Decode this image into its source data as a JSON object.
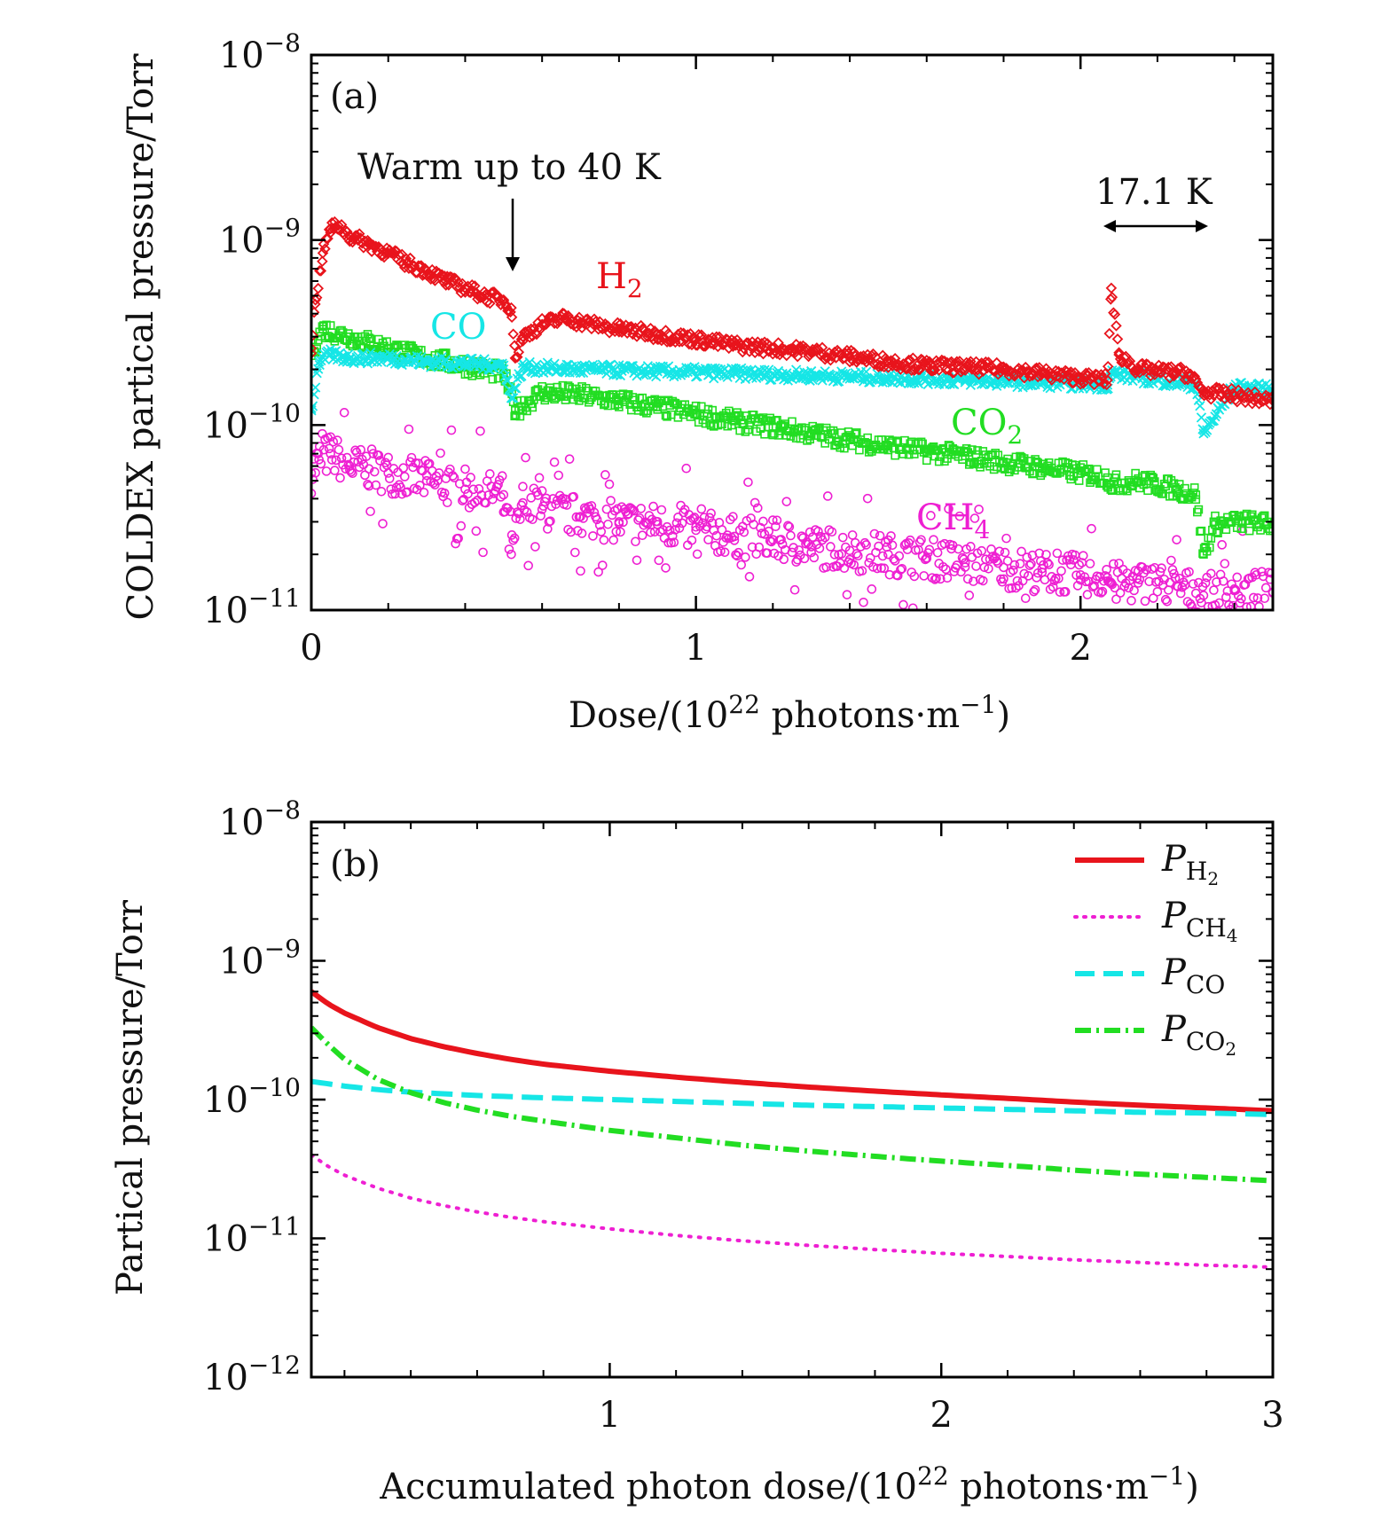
{
  "chart_data": [
    {
      "id": "a",
      "type": "scatter",
      "panel_label": "(a)",
      "xlabel": "Dose/(10²² photons·m⁻¹)",
      "xlabel_parts": {
        "pre": "Dose/(10",
        "sup1": "22",
        "mid": " photons·m",
        "sup2": "−1",
        "post": ")"
      },
      "ylabel": "COLDEX partical pressure/Torr",
      "xlim": [
        0,
        2.5
      ],
      "ylim": [
        1e-11,
        1e-08
      ],
      "yscale": "log",
      "x_ticks": [
        "0",
        "1",
        "2"
      ],
      "y_ticks": [
        {
          "base": "10",
          "exp": "−8"
        },
        {
          "base": "10",
          "exp": "−9"
        },
        {
          "base": "10",
          "exp": "−10"
        },
        {
          "base": "10",
          "exp": "−11"
        }
      ],
      "annotations": {
        "warm": "Warm up to 40 K",
        "temp": "17.1 K"
      },
      "series": [
        {
          "name": "H",
          "sub": "2",
          "color": "#e8141c",
          "marker": "diamond",
          "points": [
            [
              0.0,
              2.6e-10
            ],
            [
              0.01,
              4.5e-10
            ],
            [
              0.03,
              8.5e-10
            ],
            [
              0.05,
              1.15e-09
            ],
            [
              0.07,
              1.2e-09
            ],
            [
              0.1,
              1.05e-09
            ],
            [
              0.15,
              9.5e-10
            ],
            [
              0.2,
              8.5e-10
            ],
            [
              0.25,
              7.5e-10
            ],
            [
              0.3,
              6.8e-10
            ],
            [
              0.35,
              6e-10
            ],
            [
              0.4,
              5.5e-10
            ],
            [
              0.45,
              5e-10
            ],
            [
              0.5,
              4.7e-10
            ],
            [
              0.52,
              4.3e-10
            ],
            [
              0.53,
              2.3e-10
            ],
            [
              0.55,
              3e-10
            ],
            [
              0.6,
              3.5e-10
            ],
            [
              0.66,
              3.8e-10
            ],
            [
              0.7,
              3.6e-10
            ],
            [
              0.8,
              3.3e-10
            ],
            [
              0.9,
              3.1e-10
            ],
            [
              1.0,
              2.9e-10
            ],
            [
              1.1,
              2.7e-10
            ],
            [
              1.2,
              2.6e-10
            ],
            [
              1.3,
              2.5e-10
            ],
            [
              1.4,
              2.35e-10
            ],
            [
              1.5,
              2.2e-10
            ],
            [
              1.6,
              2.1e-10
            ],
            [
              1.7,
              2.05e-10
            ],
            [
              1.8,
              2e-10
            ],
            [
              1.9,
              1.9e-10
            ],
            [
              2.0,
              1.8e-10
            ],
            [
              2.07,
              1.75e-10
            ],
            [
              2.08,
              5.5e-10
            ],
            [
              2.1,
              2.4e-10
            ],
            [
              2.15,
              2e-10
            ],
            [
              2.2,
              1.95e-10
            ],
            [
              2.28,
              1.9e-10
            ],
            [
              2.32,
              1.5e-10
            ],
            [
              2.4,
              1.45e-10
            ],
            [
              2.5,
              1.35e-10
            ]
          ]
        },
        {
          "name": "CO",
          "sub": "",
          "color": "#16e6e6",
          "marker": "x",
          "points": [
            [
              0.0,
              1.2e-10
            ],
            [
              0.02,
              2.2e-10
            ],
            [
              0.05,
              2.4e-10
            ],
            [
              0.1,
              2.3e-10
            ],
            [
              0.2,
              2.3e-10
            ],
            [
              0.3,
              2.2e-10
            ],
            [
              0.4,
              2.15e-10
            ],
            [
              0.5,
              2.1e-10
            ],
            [
              0.52,
              1.4e-10
            ],
            [
              0.55,
              2.05e-10
            ],
            [
              0.7,
              2e-10
            ],
            [
              0.9,
              1.95e-10
            ],
            [
              1.1,
              1.9e-10
            ],
            [
              1.3,
              1.85e-10
            ],
            [
              1.5,
              1.8e-10
            ],
            [
              1.7,
              1.75e-10
            ],
            [
              1.9,
              1.7e-10
            ],
            [
              2.07,
              1.65e-10
            ],
            [
              2.08,
              1.9e-10
            ],
            [
              2.2,
              1.75e-10
            ],
            [
              2.3,
              1.65e-10
            ],
            [
              2.32,
              9e-11
            ],
            [
              2.4,
              1.6e-10
            ],
            [
              2.5,
              1.55e-10
            ]
          ]
        },
        {
          "name": "CO",
          "sub": "2",
          "color": "#22dd22",
          "marker": "square",
          "points": [
            [
              0.0,
              2.5e-10
            ],
            [
              0.03,
              3.3e-10
            ],
            [
              0.1,
              3e-10
            ],
            [
              0.2,
              2.6e-10
            ],
            [
              0.3,
              2.3e-10
            ],
            [
              0.4,
              2.1e-10
            ],
            [
              0.5,
              1.9e-10
            ],
            [
              0.53,
              1.2e-10
            ],
            [
              0.6,
              1.5e-10
            ],
            [
              0.7,
              1.45e-10
            ],
            [
              0.8,
              1.35e-10
            ],
            [
              0.9,
              1.25e-10
            ],
            [
              1.0,
              1.15e-10
            ],
            [
              1.1,
              1.05e-10
            ],
            [
              1.2,
              9.8e-11
            ],
            [
              1.3,
              9e-11
            ],
            [
              1.4,
              8.3e-11
            ],
            [
              1.5,
              7.7e-11
            ],
            [
              1.6,
              7.2e-11
            ],
            [
              1.7,
              6.8e-11
            ],
            [
              1.8,
              6.3e-11
            ],
            [
              1.9,
              5.9e-11
            ],
            [
              2.0,
              5.5e-11
            ],
            [
              2.07,
              5.2e-11
            ],
            [
              2.08,
              4.8e-11
            ],
            [
              2.15,
              5e-11
            ],
            [
              2.25,
              4.5e-11
            ],
            [
              2.3,
              4.2e-11
            ],
            [
              2.32,
              2e-11
            ],
            [
              2.35,
              2.9e-11
            ],
            [
              2.42,
              3e-11
            ],
            [
              2.5,
              2.9e-11
            ]
          ]
        },
        {
          "name": "CH",
          "sub": "4",
          "color": "#ee1fd2",
          "marker": "circle",
          "points": [
            [
              0.0,
              5.5e-11
            ],
            [
              0.02,
              6.5e-11
            ],
            [
              0.05,
              7e-11
            ],
            [
              0.1,
              6e-11
            ],
            [
              0.15,
              5.8e-11
            ],
            [
              0.2,
              5.5e-11
            ],
            [
              0.3,
              5e-11
            ],
            [
              0.4,
              4.5e-11
            ],
            [
              0.5,
              4.2e-11
            ],
            [
              0.52,
              2e-11
            ],
            [
              0.55,
              3.8e-11
            ],
            [
              0.6,
              3.5e-11
            ],
            [
              0.7,
              3.2e-11
            ],
            [
              0.8,
              3e-11
            ],
            [
              0.9,
              2.9e-11
            ],
            [
              1.0,
              2.7e-11
            ],
            [
              1.1,
              2.5e-11
            ],
            [
              1.2,
              2.4e-11
            ],
            [
              1.3,
              2.2e-11
            ],
            [
              1.4,
              2.1e-11
            ],
            [
              1.5,
              2e-11
            ],
            [
              1.6,
              1.9e-11
            ],
            [
              1.7,
              1.8e-11
            ],
            [
              1.8,
              1.7e-11
            ],
            [
              1.9,
              1.6e-11
            ],
            [
              2.0,
              1.55e-11
            ],
            [
              2.07,
              1.5e-11
            ],
            [
              2.08,
              1.4e-11
            ],
            [
              2.15,
              1.4e-11
            ],
            [
              2.25,
              1.35e-11
            ],
            [
              2.32,
              1.2e-11
            ],
            [
              2.4,
              1.3e-11
            ],
            [
              2.5,
              1.25e-11
            ]
          ]
        }
      ]
    },
    {
      "id": "b",
      "type": "line",
      "panel_label": "(b)",
      "xlabel": "Accumulated photon dose/(10²² photons·m⁻¹)",
      "xlabel_parts": {
        "pre": "Accumulated photon dose/(10",
        "sup1": "22",
        "mid": " photons·m",
        "sup2": "−1",
        "post": ")"
      },
      "ylabel": "Partical pressure/Torr",
      "xlim": [
        0.1,
        3
      ],
      "ylim": [
        1e-12,
        1e-08
      ],
      "yscale": "log",
      "x_ticks": [
        "1",
        "2",
        "3"
      ],
      "y_ticks": [
        {
          "base": "10",
          "exp": "−8"
        },
        {
          "base": "10",
          "exp": "−9"
        },
        {
          "base": "10",
          "exp": "−10"
        },
        {
          "base": "10",
          "exp": "−11"
        },
        {
          "base": "10",
          "exp": "−12"
        }
      ],
      "legend_position": "top-right",
      "x": [
        0.1,
        0.15,
        0.2,
        0.3,
        0.4,
        0.5,
        0.6,
        0.7,
        0.8,
        1.0,
        1.2,
        1.4,
        1.6,
        1.8,
        2.0,
        2.2,
        2.4,
        2.6,
        2.8,
        3.0
      ],
      "series": [
        {
          "name": "P",
          "sub": "H₂",
          "sub_base": "H",
          "sub_num": "2",
          "color": "#e8141c",
          "style": "solid",
          "values": [
            6e-10,
            4.9e-10,
            4.2e-10,
            3.3e-10,
            2.75e-10,
            2.4e-10,
            2.15e-10,
            1.95e-10,
            1.8e-10,
            1.6e-10,
            1.45e-10,
            1.33e-10,
            1.23e-10,
            1.15e-10,
            1.08e-10,
            1.02e-10,
            9.6e-11,
            9.1e-11,
            8.7e-11,
            8.3e-11
          ]
        },
        {
          "name": "P",
          "sub": "CH₄",
          "sub_base": "CH",
          "sub_num": "4",
          "color": "#ee1fd2",
          "style": "dotted",
          "values": [
            4e-11,
            3.3e-11,
            2.85e-11,
            2.3e-11,
            1.95e-11,
            1.72e-11,
            1.55e-11,
            1.42e-11,
            1.32e-11,
            1.17e-11,
            1.05e-11,
            9.6e-12,
            8.9e-12,
            8.3e-12,
            7.8e-12,
            7.4e-12,
            7e-12,
            6.7e-12,
            6.4e-12,
            6.2e-12
          ]
        },
        {
          "name": "P",
          "sub": "CO",
          "sub_base": "CO",
          "sub_num": "",
          "color": "#16e6e6",
          "style": "dashed",
          "values": [
            1.35e-10,
            1.3e-10,
            1.25e-10,
            1.18e-10,
            1.13e-10,
            1.1e-10,
            1.07e-10,
            1.05e-10,
            1.03e-10,
            1e-10,
            9.7e-11,
            9.4e-11,
            9.1e-11,
            8.9e-11,
            8.7e-11,
            8.5e-11,
            8.3e-11,
            8.1e-11,
            8e-11,
            7.8e-11
          ]
        },
        {
          "name": "P",
          "sub": "CO₂",
          "sub_base": "CO",
          "sub_num": "2",
          "color": "#22dd22",
          "style": "dashdot",
          "values": [
            3.3e-10,
            2.5e-10,
            1.95e-10,
            1.4e-10,
            1.12e-10,
            9.5e-11,
            8.4e-11,
            7.6e-11,
            7e-11,
            6e-11,
            5.3e-11,
            4.7e-11,
            4.25e-11,
            3.9e-11,
            3.6e-11,
            3.35e-11,
            3.1e-11,
            2.9e-11,
            2.75e-11,
            2.6e-11
          ]
        }
      ]
    }
  ]
}
